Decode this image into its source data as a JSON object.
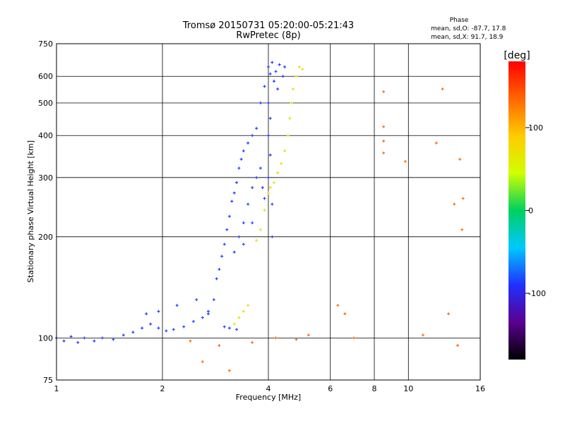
{
  "chart_data": {
    "type": "scatter",
    "title": "Tromsø 20150731 05:20:00-05:21:43",
    "subtitle": "RwPretec (8p)",
    "xlabel": "Frequency [MHz]",
    "ylabel": "Stationary phase Virtual Height [km]",
    "x_scale": "log",
    "y_scale": "log",
    "xlim": [
      1,
      16
    ],
    "ylim": [
      75,
      750
    ],
    "x_ticks": [
      1,
      2,
      4,
      6,
      8,
      10,
      16
    ],
    "y_ticks": [
      75,
      100,
      200,
      300,
      400,
      500,
      600,
      750
    ],
    "grid": true,
    "stats_title": "Phase",
    "stats_lines": [
      "mean, sd,O: -87.7, 17.8",
      "mean, sd,X:  91.7, 18.9"
    ],
    "colorbar": {
      "label": "[deg]",
      "range": [
        -180,
        180
      ],
      "ticks": [
        100,
        0,
        -100
      ],
      "colors": [
        "#000000",
        "#5a0090",
        "#2030ff",
        "#00c8ff",
        "#00d060",
        "#d0ff00",
        "#ffcc00",
        "#ff6600",
        "#ff0000"
      ]
    },
    "series": [
      {
        "points": [
          [
            1.0,
            100
          ],
          [
            1.05,
            98
          ],
          [
            1.1,
            101
          ],
          [
            1.15,
            97
          ],
          [
            1.2,
            100
          ],
          [
            1.28,
            98
          ],
          [
            1.35,
            100
          ],
          [
            1.45,
            99
          ],
          [
            1.55,
            102
          ],
          [
            1.65,
            104
          ],
          [
            1.75,
            107
          ],
          [
            1.85,
            110
          ],
          [
            1.95,
            107
          ],
          [
            2.05,
            105
          ],
          [
            2.15,
            106
          ],
          [
            2.3,
            108
          ],
          [
            2.45,
            112
          ],
          [
            2.6,
            115
          ],
          [
            2.7,
            118
          ],
          [
            2.8,
            130
          ],
          [
            2.85,
            150
          ],
          [
            2.9,
            160
          ],
          [
            2.95,
            175
          ],
          [
            3.0,
            190
          ],
          [
            3.05,
            210
          ],
          [
            3.1,
            230
          ],
          [
            3.15,
            255
          ],
          [
            3.2,
            270
          ],
          [
            3.25,
            290
          ],
          [
            3.3,
            320
          ],
          [
            3.35,
            340
          ],
          [
            3.4,
            360
          ],
          [
            3.5,
            380
          ],
          [
            3.6,
            400
          ],
          [
            3.7,
            420
          ],
          [
            3.8,
            500
          ],
          [
            3.9,
            560
          ],
          [
            4.0,
            640
          ],
          [
            4.05,
            610
          ],
          [
            4.1,
            660
          ],
          [
            4.15,
            580
          ],
          [
            4.2,
            620
          ],
          [
            4.3,
            650
          ],
          [
            4.4,
            600
          ],
          [
            4.45,
            640
          ],
          [
            4.25,
            550
          ],
          [
            3.2,
            180
          ],
          [
            3.3,
            200
          ],
          [
            3.4,
            220
          ],
          [
            3.5,
            250
          ],
          [
            3.6,
            280
          ],
          [
            3.7,
            300
          ],
          [
            3.8,
            320
          ],
          [
            3.85,
            280
          ],
          [
            3.9,
            260
          ],
          [
            3.6,
            220
          ],
          [
            3.4,
            190
          ],
          [
            4.0,
            300
          ],
          [
            4.0,
            400
          ],
          [
            4.0,
            500
          ],
          [
            4.05,
            350
          ],
          [
            4.05,
            450
          ],
          [
            4.1,
            250
          ],
          [
            4.1,
            200
          ],
          [
            1.8,
            118
          ],
          [
            1.95,
            120
          ],
          [
            2.2,
            125
          ],
          [
            2.5,
            130
          ],
          [
            2.7,
            120
          ],
          [
            3.0,
            108
          ],
          [
            3.1,
            107
          ],
          [
            3.25,
            106
          ]
        ]
      },
      {
        "points": [
          [
            3.2,
            110
          ],
          [
            3.3,
            115
          ],
          [
            3.4,
            120
          ],
          [
            3.5,
            125
          ],
          [
            3.7,
            195
          ],
          [
            3.8,
            210
          ],
          [
            3.9,
            240
          ],
          [
            4.0,
            270
          ],
          [
            4.05,
            280
          ],
          [
            4.15,
            290
          ],
          [
            4.25,
            310
          ],
          [
            4.35,
            330
          ],
          [
            4.45,
            360
          ],
          [
            4.55,
            400
          ],
          [
            4.6,
            450
          ],
          [
            4.65,
            500
          ],
          [
            4.7,
            550
          ],
          [
            4.8,
            600
          ],
          [
            4.9,
            640
          ],
          [
            5.0,
            630
          ]
        ]
      },
      {
        "points": [
          [
            2.4,
            98
          ],
          [
            2.6,
            85
          ],
          [
            2.9,
            95
          ],
          [
            3.1,
            80
          ],
          [
            3.6,
            97
          ],
          [
            4.2,
            100
          ],
          [
            4.8,
            99
          ],
          [
            5.2,
            102
          ],
          [
            6.3,
            125
          ],
          [
            6.6,
            118
          ],
          [
            7.0,
            100
          ],
          [
            8.5,
            540
          ],
          [
            8.5,
            425
          ],
          [
            8.5,
            355
          ],
          [
            8.5,
            385
          ],
          [
            9.8,
            335
          ],
          [
            12.0,
            380
          ],
          [
            12.5,
            550
          ],
          [
            13.0,
            118
          ],
          [
            13.5,
            250
          ],
          [
            14.0,
            340
          ],
          [
            14.2,
            210
          ],
          [
            14.3,
            260
          ],
          [
            13.8,
            95
          ],
          [
            11.0,
            102
          ]
        ]
      }
    ]
  }
}
